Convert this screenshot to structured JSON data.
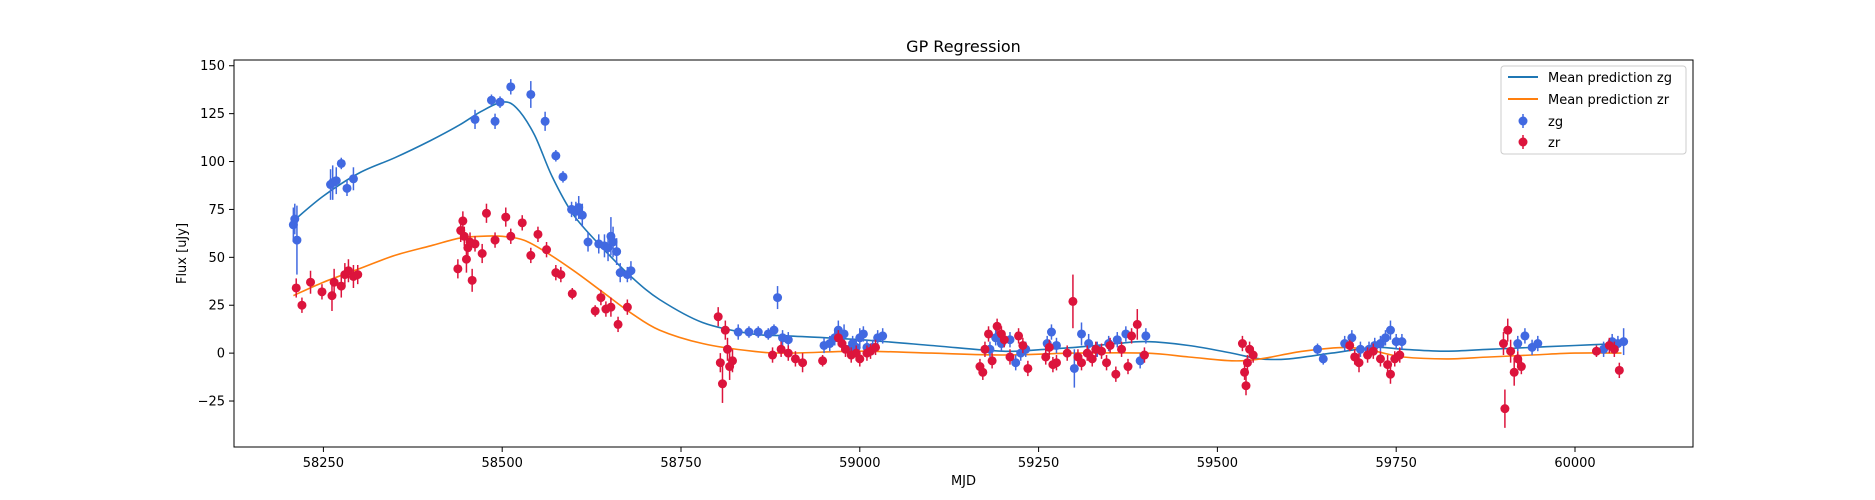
{
  "chart_data": {
    "type": "scatter",
    "title": "GP Regression",
    "xlabel": "MJD",
    "ylabel": "Flux [uJy]",
    "xlim": [
      58125,
      60165
    ],
    "ylim": [
      -49,
      153
    ],
    "xticks": [
      58250,
      58500,
      58750,
      59000,
      59250,
      59500,
      59750,
      60000
    ],
    "yticks": [
      -25,
      0,
      25,
      50,
      75,
      100,
      125,
      150
    ],
    "legend_position": "upper right",
    "grid": false,
    "colors": {
      "zg_line": "#1f77b4",
      "zr_line": "#ff7f0e",
      "zg_points": "#4169e1",
      "zr_points": "#dc143c"
    },
    "lines": [
      {
        "name": "Mean prediction zg",
        "color": "#1f77b4",
        "x": [
          58208,
          58250,
          58300,
          58350,
          58400,
          58440,
          58470,
          58500,
          58520,
          58545,
          58570,
          58600,
          58640,
          58680,
          58720,
          58780,
          58850,
          58900,
          59000,
          59100,
          59200,
          59260,
          59300,
          59360,
          59400,
          59460,
          59520,
          59560,
          59600,
          59660,
          59720,
          59760,
          59820,
          59880,
          59940,
          60000,
          60065
        ],
        "y": [
          69,
          82,
          94,
          102,
          111,
          119,
          126,
          131,
          128,
          114,
          92,
          72,
          55,
          40,
          28,
          16,
          10,
          9,
          7,
          4,
          1,
          2,
          3,
          5,
          6,
          4,
          0,
          -3,
          -3,
          0,
          3,
          2,
          1,
          2,
          3,
          4,
          5
        ]
      },
      {
        "name": "Mean prediction zr",
        "color": "#ff7f0e",
        "x": [
          58208,
          58250,
          58300,
          58350,
          58400,
          58440,
          58470,
          58500,
          58530,
          58560,
          58600,
          58640,
          58680,
          58720,
          58780,
          58850,
          58900,
          59000,
          59100,
          59200,
          59300,
          59400,
          59460,
          59520,
          59560,
          59620,
          59680,
          59720,
          59760,
          59820,
          59880,
          59940,
          60000,
          60065
        ],
        "y": [
          30,
          37,
          44,
          51,
          56,
          60,
          61,
          61,
          59,
          53,
          43,
          32,
          21,
          12,
          5,
          1,
          0,
          1,
          0,
          -1,
          0,
          0,
          -2,
          -4,
          -3,
          1,
          3,
          1,
          -2,
          -3,
          -2,
          -1,
          0,
          0
        ]
      }
    ],
    "series": [
      {
        "name": "zg",
        "color": "#4169e1",
        "points": [
          [
            58208,
            67,
            9
          ],
          [
            58210,
            70,
            8
          ],
          [
            58213,
            59,
            18
          ],
          [
            58260,
            88,
            8
          ],
          [
            58263,
            89,
            9
          ],
          [
            58268,
            90,
            7
          ],
          [
            58275,
            99,
            3
          ],
          [
            58283,
            86,
            4
          ],
          [
            58292,
            91,
            6
          ],
          [
            58462,
            122,
            5
          ],
          [
            58485,
            132,
            3
          ],
          [
            58490,
            121,
            4
          ],
          [
            58497,
            131,
            3
          ],
          [
            58512,
            139,
            4
          ],
          [
            58540,
            135,
            7
          ],
          [
            58560,
            121,
            5
          ],
          [
            58575,
            103,
            3
          ],
          [
            58585,
            92,
            3
          ],
          [
            58597,
            75,
            4
          ],
          [
            58603,
            74,
            5
          ],
          [
            58607,
            76,
            6
          ],
          [
            58612,
            72,
            6
          ],
          [
            58620,
            58,
            5
          ],
          [
            58635,
            57,
            5
          ],
          [
            58643,
            56,
            6
          ],
          [
            58648,
            55,
            7
          ],
          [
            58652,
            61,
            10
          ],
          [
            58655,
            58,
            8
          ],
          [
            58660,
            53,
            7
          ],
          [
            58665,
            42,
            5
          ],
          [
            58675,
            41,
            4
          ],
          [
            58680,
            43,
            5
          ],
          [
            58830,
            11,
            4
          ],
          [
            58845,
            11,
            3
          ],
          [
            58858,
            11,
            3
          ],
          [
            58872,
            10,
            3
          ],
          [
            58880,
            12,
            3
          ],
          [
            58885,
            29,
            6
          ],
          [
            58892,
            8,
            4
          ],
          [
            58900,
            7,
            4
          ],
          [
            58950,
            4,
            4
          ],
          [
            58958,
            5,
            4
          ],
          [
            58965,
            8,
            4
          ],
          [
            58970,
            12,
            5
          ],
          [
            58978,
            10,
            5
          ],
          [
            58985,
            2,
            4
          ],
          [
            58990,
            5,
            4
          ],
          [
            58995,
            3,
            4
          ],
          [
            59000,
            8,
            5
          ],
          [
            59005,
            10,
            4
          ],
          [
            59010,
            3,
            4
          ],
          [
            59018,
            3,
            4
          ],
          [
            59025,
            8,
            4
          ],
          [
            59032,
            9,
            4
          ],
          [
            59182,
            2,
            4
          ],
          [
            59190,
            8,
            4
          ],
          [
            59198,
            5,
            4
          ],
          [
            59210,
            7,
            4
          ],
          [
            59218,
            -5,
            4
          ],
          [
            59225,
            0,
            4
          ],
          [
            59232,
            2,
            4
          ],
          [
            59262,
            5,
            4
          ],
          [
            59268,
            11,
            4
          ],
          [
            59275,
            4,
            4
          ],
          [
            59300,
            -8,
            10
          ],
          [
            59310,
            10,
            6
          ],
          [
            59320,
            5,
            5
          ],
          [
            59332,
            2,
            4
          ],
          [
            59348,
            5,
            4
          ],
          [
            59360,
            7,
            4
          ],
          [
            59372,
            10,
            4
          ],
          [
            59392,
            -4,
            4
          ],
          [
            59400,
            9,
            4
          ],
          [
            59640,
            2,
            3
          ],
          [
            59648,
            -3,
            3
          ],
          [
            59678,
            5,
            4
          ],
          [
            59688,
            8,
            4
          ],
          [
            59700,
            2,
            4
          ],
          [
            59712,
            2,
            4
          ],
          [
            59720,
            4,
            4
          ],
          [
            59728,
            5,
            4
          ],
          [
            59735,
            8,
            4
          ],
          [
            59742,
            12,
            5
          ],
          [
            59750,
            6,
            4
          ],
          [
            59758,
            6,
            4
          ],
          [
            59920,
            5,
            4
          ],
          [
            59930,
            9,
            4
          ],
          [
            59940,
            3,
            4
          ],
          [
            59948,
            5,
            4
          ],
          [
            60040,
            2,
            4
          ],
          [
            60052,
            6,
            4
          ],
          [
            60060,
            5,
            4
          ],
          [
            60068,
            6,
            7
          ]
        ]
      },
      {
        "name": "zr",
        "color": "#dc143c",
        "points": [
          [
            58212,
            34,
            5
          ],
          [
            58220,
            25,
            4
          ],
          [
            58232,
            37,
            6
          ],
          [
            58248,
            32,
            4
          ],
          [
            58262,
            30,
            8
          ],
          [
            58265,
            37,
            7
          ],
          [
            58275,
            35,
            6
          ],
          [
            58280,
            41,
            6
          ],
          [
            58285,
            43,
            6
          ],
          [
            58292,
            40,
            6
          ],
          [
            58298,
            41,
            5
          ],
          [
            58438,
            44,
            5
          ],
          [
            58442,
            64,
            6
          ],
          [
            58445,
            69,
            5
          ],
          [
            58447,
            61,
            5
          ],
          [
            58450,
            49,
            7
          ],
          [
            58452,
            55,
            6
          ],
          [
            58455,
            58,
            5
          ],
          [
            58458,
            38,
            6
          ],
          [
            58462,
            57,
            4
          ],
          [
            58472,
            52,
            5
          ],
          [
            58478,
            73,
            5
          ],
          [
            58490,
            59,
            4
          ],
          [
            58505,
            71,
            5
          ],
          [
            58512,
            61,
            4
          ],
          [
            58528,
            68,
            4
          ],
          [
            58540,
            51,
            4
          ],
          [
            58550,
            62,
            4
          ],
          [
            58562,
            54,
            4
          ],
          [
            58575,
            42,
            4
          ],
          [
            58582,
            41,
            4
          ],
          [
            58598,
            31,
            3
          ],
          [
            58630,
            22,
            3
          ],
          [
            58638,
            29,
            4
          ],
          [
            58645,
            23,
            4
          ],
          [
            58652,
            24,
            5
          ],
          [
            58662,
            15,
            4
          ],
          [
            58675,
            24,
            4
          ],
          [
            58802,
            19,
            5
          ],
          [
            58805,
            -5,
            5
          ],
          [
            58808,
            -16,
            10
          ],
          [
            58812,
            12,
            5
          ],
          [
            58815,
            2,
            6
          ],
          [
            58818,
            -7,
            7
          ],
          [
            58822,
            -4,
            6
          ],
          [
            58878,
            -1,
            4
          ],
          [
            58890,
            2,
            4
          ],
          [
            58900,
            0,
            4
          ],
          [
            58910,
            -3,
            4
          ],
          [
            58920,
            -5,
            5
          ],
          [
            58948,
            -4,
            3
          ],
          [
            58970,
            8,
            4
          ],
          [
            58975,
            5,
            4
          ],
          [
            58980,
            2,
            4
          ],
          [
            58988,
            -1,
            4
          ],
          [
            58995,
            0,
            4
          ],
          [
            59000,
            -3,
            4
          ],
          [
            59010,
            0,
            4
          ],
          [
            59015,
            1,
            4
          ],
          [
            59022,
            3,
            4
          ],
          [
            59168,
            -7,
            4
          ],
          [
            59172,
            -10,
            4
          ],
          [
            59175,
            2,
            4
          ],
          [
            59180,
            10,
            4
          ],
          [
            59185,
            -4,
            4
          ],
          [
            59192,
            14,
            4
          ],
          [
            59198,
            10,
            4
          ],
          [
            59202,
            7,
            4
          ],
          [
            59210,
            -2,
            4
          ],
          [
            59222,
            9,
            4
          ],
          [
            59228,
            4,
            4
          ],
          [
            59235,
            -8,
            4
          ],
          [
            59260,
            -2,
            4
          ],
          [
            59265,
            3,
            4
          ],
          [
            59270,
            -6,
            4
          ],
          [
            59275,
            -5,
            4
          ],
          [
            59290,
            0,
            4
          ],
          [
            59298,
            27,
            14
          ],
          [
            59305,
            -2,
            4
          ],
          [
            59310,
            -5,
            4
          ],
          [
            59318,
            0,
            4
          ],
          [
            59325,
            -3,
            4
          ],
          [
            59330,
            2,
            4
          ],
          [
            59338,
            1,
            4
          ],
          [
            59345,
            -5,
            4
          ],
          [
            59350,
            4,
            4
          ],
          [
            59358,
            -11,
            4
          ],
          [
            59366,
            2,
            4
          ],
          [
            59375,
            -7,
            4
          ],
          [
            59380,
            9,
            4
          ],
          [
            59388,
            15,
            8
          ],
          [
            59398,
            -1,
            4
          ],
          [
            59535,
            5,
            4
          ],
          [
            59538,
            -10,
            4
          ],
          [
            59540,
            -17,
            5
          ],
          [
            59542,
            -5,
            4
          ],
          [
            59545,
            2,
            4
          ],
          [
            59550,
            -1,
            4
          ],
          [
            59685,
            4,
            3
          ],
          [
            59692,
            -2,
            4
          ],
          [
            59698,
            -5,
            5
          ],
          [
            59710,
            -1,
            4
          ],
          [
            59718,
            1,
            4
          ],
          [
            59728,
            -3,
            4
          ],
          [
            59738,
            -6,
            5
          ],
          [
            59742,
            -11,
            5
          ],
          [
            59748,
            -3,
            4
          ],
          [
            59755,
            -1,
            4
          ],
          [
            59900,
            5,
            6
          ],
          [
            59902,
            -29,
            10
          ],
          [
            59906,
            12,
            6
          ],
          [
            59910,
            1,
            6
          ],
          [
            59915,
            -10,
            7
          ],
          [
            59920,
            -3,
            4
          ],
          [
            59925,
            -7,
            4
          ],
          [
            60030,
            1,
            3
          ],
          [
            60048,
            4,
            4
          ],
          [
            60055,
            2,
            4
          ],
          [
            60062,
            -9,
            4
          ]
        ]
      }
    ]
  }
}
